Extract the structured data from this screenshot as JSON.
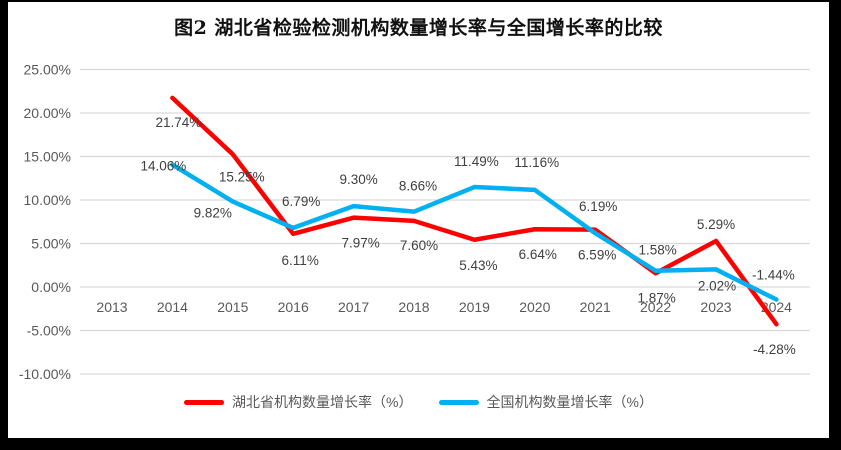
{
  "title": "图2 湖北省检验检测机构数量增长率与全国增长率的比较",
  "frame": {
    "border_color": "#000000",
    "background": "#FFFFFF"
  },
  "chart_data": {
    "type": "line",
    "title": "图2 湖北省检验检测机构数量增长率与全国增长率的比较",
    "categories": [
      "2013",
      "2014",
      "2015",
      "2016",
      "2017",
      "2018",
      "2019",
      "2020",
      "2021",
      "2022",
      "2023",
      "2024"
    ],
    "ylim": [
      -10,
      25
    ],
    "ytick_step": 5,
    "ytick_labels": [
      "25.00%",
      "20.00%",
      "15.00%",
      "10.00%",
      "5.00%",
      "0.00%",
      "-5.00%",
      "-10.00%"
    ],
    "grid": true,
    "grid_color": "#D9D9D9",
    "axis_text_color": "#595959",
    "data_label_color": "#404040",
    "legend_position": "bottom",
    "series": [
      {
        "name": "湖北省机构数量增长率（%）",
        "color": "#FF0000",
        "values": [
          null,
          21.74,
          15.25,
          6.11,
          7.97,
          7.6,
          5.43,
          6.64,
          6.59,
          1.58,
          5.29,
          -4.28
        ],
        "labels": [
          null,
          "21.74%",
          "15.25%",
          "6.11%",
          "7.97%",
          "7.60%",
          "5.43%",
          "6.64%",
          "6.59%",
          "1.58%",
          "5.29%",
          "-4.28%"
        ],
        "label_offsets": [
          null,
          [
            6,
            25
          ],
          [
            9,
            23
          ],
          [
            7,
            27
          ],
          [
            7,
            26
          ],
          [
            5,
            25
          ],
          [
            4,
            26
          ],
          [
            3,
            26
          ],
          [
            2,
            26
          ],
          [
            2,
            -23
          ],
          [
            0,
            -16
          ],
          [
            -2,
            26
          ]
        ]
      },
      {
        "name": "全国机构数量增长率（%）",
        "color": "#00B0F0",
        "values": [
          null,
          14.06,
          9.82,
          6.79,
          9.3,
          8.66,
          11.49,
          11.16,
          6.19,
          1.87,
          2.02,
          -1.44
        ],
        "labels": [
          null,
          "14.06%",
          "9.82%",
          "6.79%",
          "9.30%",
          "8.66%",
          "11.49%",
          "11.16%",
          "6.19%",
          "1.87%",
          "2.02%",
          "-1.44%"
        ],
        "label_offsets": [
          null,
          [
            -9,
            2
          ],
          [
            -20,
            12
          ],
          [
            8,
            -26
          ],
          [
            5,
            -26
          ],
          [
            4,
            -25
          ],
          [
            2,
            -25
          ],
          [
            2,
            -27
          ],
          [
            3,
            -26
          ],
          [
            1,
            28
          ],
          [
            1,
            17
          ],
          [
            -3,
            -24
          ]
        ]
      }
    ]
  }
}
